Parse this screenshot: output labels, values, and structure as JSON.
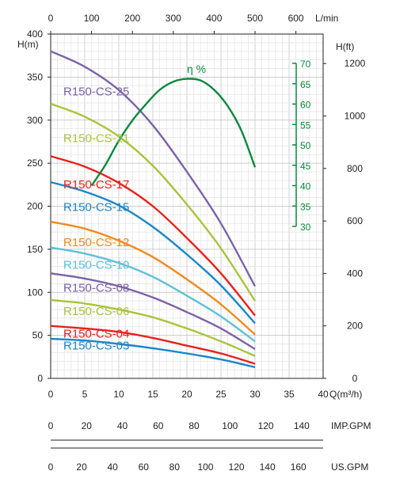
{
  "chart_data": {
    "type": "line",
    "x_axis": {
      "label": "Q(m³/h)",
      "range": [
        0,
        40
      ],
      "ticks": [
        0,
        5,
        10,
        15,
        20,
        25,
        30,
        35,
        40
      ]
    },
    "x_top_axis": {
      "label": "L/min",
      "range": [
        0,
        666.667
      ],
      "ticks": [
        0,
        100,
        200,
        300,
        400,
        500,
        600
      ]
    },
    "y_axis": {
      "label": "H(m)",
      "range": [
        0,
        400
      ],
      "ticks": [
        0,
        50,
        100,
        150,
        200,
        250,
        300,
        350,
        400
      ]
    },
    "y_right_axis": {
      "label": "H(ft)",
      "range": [
        0,
        1312.34
      ],
      "ticks": [
        0,
        200,
        400,
        600,
        800,
        1000,
        1200
      ]
    },
    "eff_axis": {
      "label": "η %",
      "range": [
        30,
        70
      ],
      "ticks": [
        30,
        35,
        40,
        45,
        50,
        55,
        60,
        65,
        70
      ],
      "color": "#0a8a3e"
    },
    "grid": true,
    "series": [
      {
        "name": "R150-CS-25",
        "color": "#7b62a8",
        "x": [
          0,
          5,
          10,
          15,
          20,
          25,
          30
        ],
        "y": [
          380,
          362,
          335,
          294,
          240,
          180,
          107
        ]
      },
      {
        "name": "R150-CS-21",
        "color": "#a8c43c",
        "x": [
          0,
          5,
          10,
          15,
          20,
          25,
          30
        ],
        "y": [
          319,
          304,
          281,
          247,
          202,
          151,
          90
        ]
      },
      {
        "name": "R150-CS-17",
        "color": "#e8211b",
        "x": [
          0,
          5,
          10,
          15,
          20,
          25,
          30
        ],
        "y": [
          258,
          246,
          227,
          200,
          163,
          122,
          73
        ]
      },
      {
        "name": "R150-CS-15",
        "color": "#1b86c8",
        "x": [
          0,
          5,
          10,
          15,
          20,
          25,
          30
        ],
        "y": [
          228,
          217,
          201,
          176,
          144,
          108,
          64
        ]
      },
      {
        "name": "R150-CS-12",
        "color": "#f08a1d",
        "x": [
          0,
          5,
          10,
          15,
          20,
          25,
          30
        ],
        "y": [
          182,
          174,
          160,
          141,
          115,
          86,
          51
        ]
      },
      {
        "name": "R150-CS-10",
        "color": "#5ec0d8",
        "x": [
          0,
          5,
          10,
          15,
          20,
          25,
          30
        ],
        "y": [
          152,
          145,
          134,
          118,
          96,
          72,
          43
        ]
      },
      {
        "name": "R150-CS-08",
        "color": "#7b62a8",
        "x": [
          0,
          5,
          10,
          15,
          20,
          25,
          30
        ],
        "y": [
          122,
          116,
          107,
          94,
          77,
          58,
          34
        ]
      },
      {
        "name": "R150-CS-06",
        "color": "#a8c43c",
        "x": [
          0,
          5,
          10,
          15,
          20,
          25,
          30
        ],
        "y": [
          91,
          87,
          80,
          71,
          58,
          43,
          26
        ]
      },
      {
        "name": "R150-CS-04",
        "color": "#e8211b",
        "x": [
          0,
          5,
          10,
          15,
          20,
          25,
          30
        ],
        "y": [
          61,
          58,
          54,
          47,
          38,
          29,
          17
        ]
      },
      {
        "name": "R150-CS-03",
        "color": "#1b86c8",
        "x": [
          0,
          5,
          10,
          15,
          20,
          25,
          30
        ],
        "y": [
          46,
          44,
          40,
          35,
          29,
          22,
          13
        ]
      }
    ],
    "efficiency": {
      "name": "η %",
      "color": "#0a8a3e",
      "x": [
        6,
        8,
        10,
        12,
        14,
        16,
        18,
        20,
        22,
        24,
        26,
        28,
        30
      ],
      "y": [
        40,
        45,
        51,
        56,
        60,
        63.5,
        65.5,
        66.2,
        65.8,
        63.5,
        59.5,
        53.5,
        44.5
      ]
    },
    "imp_gpm_axis": {
      "label": "IMP.GPM",
      "ticks": [
        0,
        20,
        40,
        60,
        80,
        100,
        120,
        140
      ]
    },
    "us_gpm_axis": {
      "label": "US.GPM",
      "ticks": [
        0,
        20,
        40,
        60,
        80,
        100,
        120,
        140,
        160
      ]
    }
  }
}
